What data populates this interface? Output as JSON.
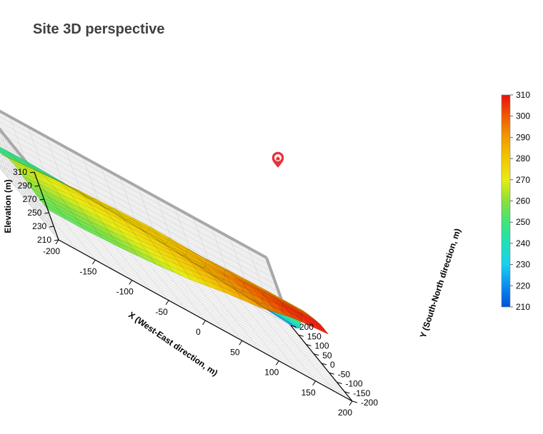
{
  "title": "Site 3D perspective",
  "marker": {
    "icon": "home-pin-icon",
    "color": "#e8323c"
  },
  "chart_data": {
    "type": "heatmap",
    "title": "Site 3D perspective",
    "xlabel": "X (West-East direction, m)",
    "ylabel": "Y (South-North direction, m)",
    "zlabel": "Elevation (m)",
    "xlim": [
      -200,
      200
    ],
    "ylim": [
      -200,
      200
    ],
    "zlim": [
      210,
      310
    ],
    "x_ticks": [
      "-200",
      "-150",
      "-100",
      "-50",
      "0",
      "50",
      "100",
      "150",
      "200"
    ],
    "y_ticks": [
      "-200",
      "-150",
      "-100",
      "-50",
      "0",
      "50",
      "100",
      "150",
      "200"
    ],
    "z_ticks": [
      "210",
      "230",
      "250",
      "270",
      "290",
      "310"
    ],
    "colorbar_ticks": [
      "210",
      "220",
      "230",
      "240",
      "250",
      "260",
      "270",
      "280",
      "290",
      "300",
      "310"
    ],
    "colorbar_colors": [
      "#0050dc",
      "#0a8ef0",
      "#19d0f0",
      "#1fe0b8",
      "#3de67a",
      "#8ae03a",
      "#e8ec10",
      "#f2c800",
      "#f29a00",
      "#f05a00",
      "#ea1010"
    ],
    "grid": true,
    "x": [
      -200,
      -150,
      -100,
      -50,
      0,
      50,
      100,
      150,
      200
    ],
    "y": [
      -200,
      -150,
      -100,
      -50,
      0,
      50,
      100,
      150,
      200
    ],
    "z": [
      [
        255,
        255,
        258,
        263,
        270,
        281,
        289,
        303,
        309
      ],
      [
        256,
        257,
        260,
        268,
        276,
        285,
        295,
        306,
        309
      ],
      [
        258,
        260,
        266,
        272,
        279,
        288,
        298,
        302,
        303
      ],
      [
        262,
        266,
        272,
        275,
        280,
        286,
        292,
        295,
        296
      ],
      [
        265,
        270,
        276,
        279,
        281,
        284,
        287,
        288,
        288
      ],
      [
        262,
        267,
        273,
        276,
        278,
        276,
        274,
        268,
        262
      ],
      [
        252,
        257,
        262,
        262,
        258,
        252,
        246,
        240,
        234
      ],
      [
        248,
        250,
        250,
        248,
        244,
        238,
        231,
        226,
        220
      ],
      [
        244,
        245,
        243,
        240,
        236,
        230,
        224,
        218,
        214
      ]
    ]
  }
}
